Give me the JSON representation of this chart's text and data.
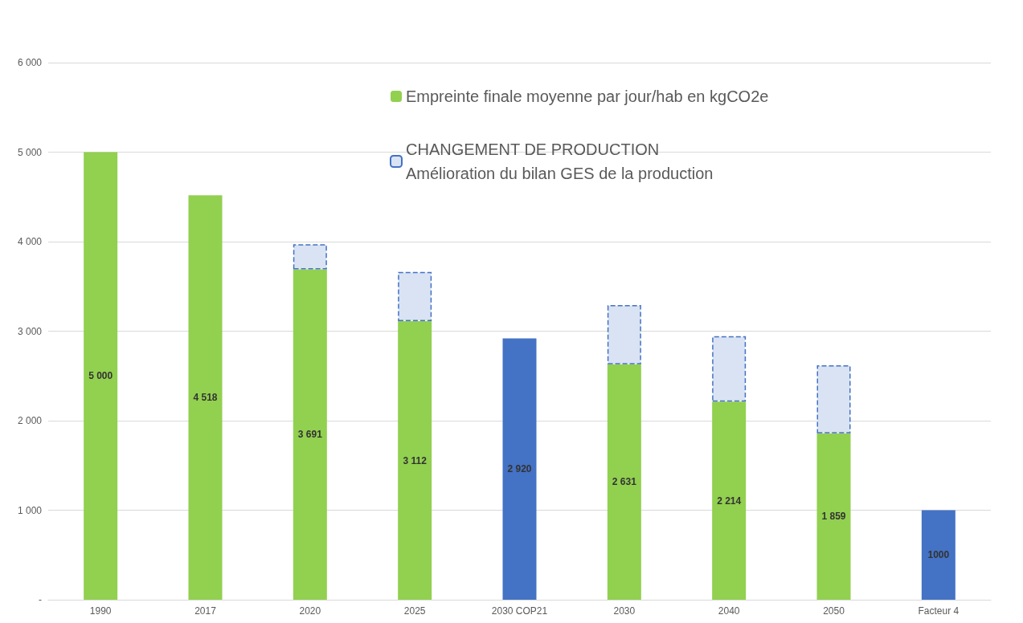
{
  "chart_data": {
    "type": "bar",
    "stacked": true,
    "categories": [
      "1990",
      "2017",
      "2020",
      "2025",
      "2030 COP21",
      "2030",
      "2040",
      "2050",
      "Facteur 4"
    ],
    "series": [
      {
        "name": "Empreinte finale moyenne par jour/hab en kgCO2e",
        "color": "#92d050",
        "colors": [
          "#92d050",
          "#92d050",
          "#92d050",
          "#92d050",
          "#4472c4",
          "#92d050",
          "#92d050",
          "#92d050",
          "#4472c4"
        ],
        "values": [
          5000,
          4518,
          3691,
          3112,
          2920,
          2631,
          2214,
          1859,
          1000
        ],
        "value_labels": [
          "5 000",
          "4 518",
          "3 691",
          "3 112",
          "2 920",
          "2 631",
          "2 214",
          "1 859",
          "1000"
        ]
      },
      {
        "name": "CHANGEMENT DE PRODUCTION\nAmélioration du bilan GES de la production",
        "color": "#dae3f3",
        "line_style": "dashed",
        "values": [
          null,
          null,
          280,
          550,
          null,
          660,
          730,
          760,
          null
        ]
      }
    ],
    "ylim": [
      0,
      6000
    ],
    "yticks": [
      {
        "value": 0,
        "label": "-"
      },
      {
        "value": 1000,
        "label": "1 000"
      },
      {
        "value": 2000,
        "label": "2 000"
      },
      {
        "value": 3000,
        "label": "3 000"
      },
      {
        "value": 4000,
        "label": "4 000"
      },
      {
        "value": 5000,
        "label": "5 000"
      },
      {
        "value": 6000,
        "label": "6 000"
      }
    ],
    "grid": "y",
    "legend": "top right"
  }
}
